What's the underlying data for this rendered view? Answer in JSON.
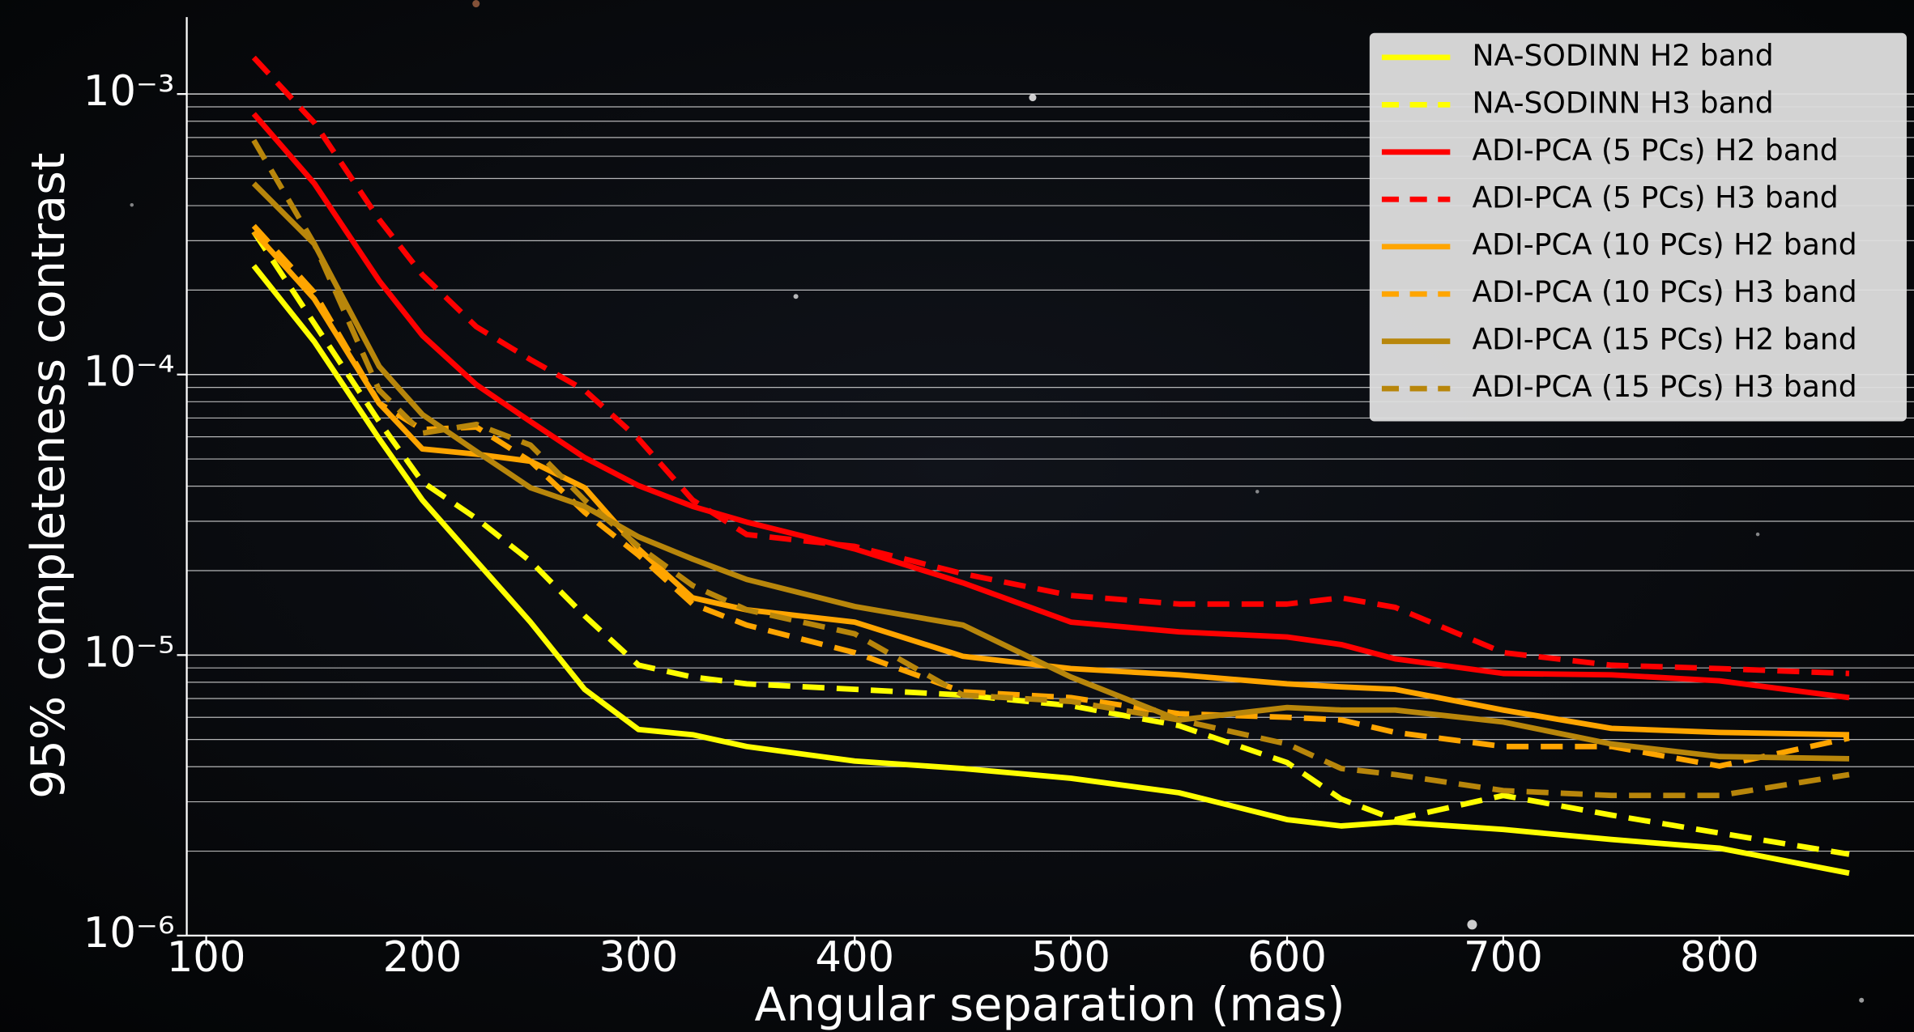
{
  "chart_data": {
    "type": "line",
    "xlabel": "Angular separation (mas)",
    "ylabel": "95% completeness contrast",
    "x": [
      122,
      150,
      180,
      200,
      225,
      250,
      275,
      300,
      325,
      350,
      400,
      450,
      500,
      550,
      600,
      625,
      650,
      700,
      750,
      800,
      860
    ],
    "series": [
      {
        "name": "NA-SODINN H2 band",
        "color": "#ffff00",
        "linestyle": "solid",
        "values": [
          0.000244,
          0.000131,
          5.9e-05,
          3.57e-05,
          2.16e-05,
          1.31e-05,
          7.55e-06,
          5.43e-06,
          5.2e-06,
          4.72e-06,
          4.19e-06,
          3.94e-06,
          3.64e-06,
          3.23e-06,
          2.59e-06,
          2.46e-06,
          2.54e-06,
          2.39e-06,
          2.2e-06,
          2.05e-06,
          1.67e-06
        ]
      },
      {
        "name": "NA-SODINN H3 band",
        "color": "#ffff00",
        "linestyle": "dashed",
        "values": [
          0.000323,
          0.000152,
          6.8e-05,
          4.14e-05,
          3.07e-05,
          2.16e-05,
          1.38e-05,
          9.2e-06,
          8.35e-06,
          7.9e-06,
          7.55e-06,
          7.2e-06,
          6.6e-06,
          5.6e-06,
          4.14e-06,
          3.07e-06,
          2.59e-06,
          3.16e-06,
          2.69e-06,
          2.32e-06,
          1.95e-06
        ]
      },
      {
        "name": "ADI-PCA (5 PCs) H2 band",
        "color": "#ff0000",
        "linestyle": "solid",
        "values": [
          0.00085,
          0.00048,
          0.000216,
          0.000138,
          9.2e-05,
          6.8e-05,
          5.06e-05,
          4.02e-05,
          3.39e-05,
          2.98e-05,
          2.39e-05,
          1.81e-05,
          1.31e-05,
          1.21e-05,
          1.16e-05,
          1.09e-05,
          9.7e-06,
          8.6e-06,
          8.5e-06,
          8.1e-06,
          7.05e-06
        ]
      },
      {
        "name": "ADI-PCA (5 PCs) H3 band",
        "color": "#ff0000",
        "linestyle": "dashed",
        "values": [
          0.00135,
          0.00079,
          0.000357,
          0.000227,
          0.000148,
          0.000113,
          8.8e-05,
          5.9e-05,
          3.57e-05,
          2.69e-05,
          2.44e-05,
          1.95e-05,
          1.63e-05,
          1.52e-05,
          1.52e-05,
          1.6e-05,
          1.48e-05,
          1.02e-05,
          9.2e-06,
          8.95e-06,
          8.6e-06
        ]
      },
      {
        "name": "ADI-PCA (10 PCs) H2 band",
        "color": "#ffa500",
        "linestyle": "solid",
        "values": [
          0.000323,
          0.000186,
          7.9e-05,
          5.43e-05,
          5.2e-05,
          4.91e-05,
          3.95e-05,
          2.39e-05,
          1.6e-05,
          1.45e-05,
          1.31e-05,
          9.9e-06,
          8.95e-06,
          8.5e-06,
          7.9e-06,
          7.7e-06,
          7.55e-06,
          6.37e-06,
          5.48e-06,
          5.3e-06,
          5.2e-06
        ]
      },
      {
        "name": "ADI-PCA (10 PCs) H3 band",
        "color": "#ffa500",
        "linestyle": "dashed",
        "values": [
          0.000339,
          0.000196,
          7.9e-05,
          6.37e-05,
          6.5e-05,
          4.91e-05,
          3.23e-05,
          2.27e-05,
          1.52e-05,
          1.28e-05,
          1.02e-05,
          7.4e-06,
          7.05e-06,
          6.18e-06,
          6e-06,
          5.87e-06,
          5.3e-06,
          4.72e-06,
          4.72e-06,
          4.02e-06,
          5.06e-06
        ]
      },
      {
        "name": "ADI-PCA (15 PCs) H2 band",
        "color": "#b8860b",
        "linestyle": "solid",
        "values": [
          0.00048,
          0.000292,
          0.000107,
          7.2e-05,
          5.32e-05,
          3.95e-05,
          3.39e-05,
          2.64e-05,
          2.2e-05,
          1.86e-05,
          1.49e-05,
          1.28e-05,
          8.35e-06,
          5.87e-06,
          6.5e-06,
          6.37e-06,
          6.37e-06,
          5.77e-06,
          4.82e-06,
          4.35e-06,
          4.27e-06
        ]
      },
      {
        "name": "ADI-PCA (15 PCs) H3 band",
        "color": "#b8860b",
        "linestyle": "dashed",
        "values": [
          0.000684,
          0.000292,
          8.8e-05,
          6.18e-05,
          6.64e-05,
          5.6e-05,
          3.57e-05,
          2.44e-05,
          1.77e-05,
          1.45e-05,
          1.19e-05,
          7.2e-06,
          6.84e-06,
          5.87e-06,
          4.82e-06,
          3.94e-06,
          3.75e-06,
          3.29e-06,
          3.16e-06,
          3.16e-06,
          3.75e-06
        ]
      }
    ],
    "xlim": [
      91,
      890
    ],
    "xticks": [
      100,
      200,
      300,
      400,
      500,
      600,
      700,
      800
    ],
    "ylim": [
      1e-06,
      0.00188
    ],
    "yscale": "log",
    "yticks": [
      {
        "value": 1e-06,
        "label": "10⁻⁶"
      },
      {
        "value": 1e-05,
        "label": "10⁻⁵"
      },
      {
        "value": 0.0001,
        "label": "10⁻⁴"
      },
      {
        "value": 0.001,
        "label": "10⁻³"
      }
    ],
    "yminorticks": [
      2e-06,
      3e-06,
      4e-06,
      5e-06,
      6e-06,
      7e-06,
      8e-06,
      9e-06,
      2e-05,
      3e-05,
      4e-05,
      5e-05,
      6e-05,
      7e-05,
      8e-05,
      9e-05,
      0.0002,
      0.0003,
      0.0004,
      0.0005,
      0.0006,
      0.0007,
      0.0008,
      0.0009
    ],
    "grid": true,
    "legend": "upper right"
  }
}
